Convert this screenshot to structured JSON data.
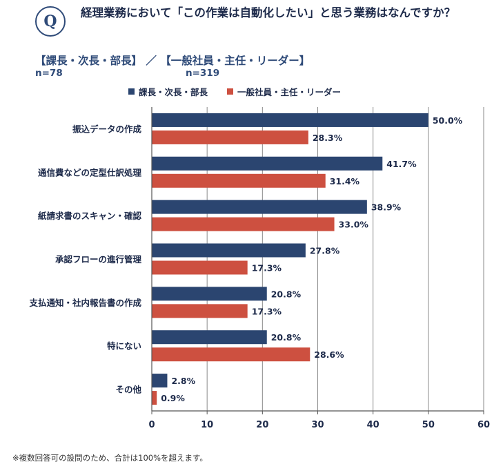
{
  "header": {
    "q_letter": "Q",
    "question": "経理業務において「この作業は自動化したい」と思う業務はなんですか？",
    "groups_line": "【課長・次長・部長】 ／ 【一般社員・主任・リーダー】",
    "n_manager": "n=78",
    "n_staff": "n=319"
  },
  "colors": {
    "manager": "#2b4570",
    "staff": "#cd5040"
  },
  "footnote": "※複数回答可の設問のため、合計は100%を超えます。",
  "chart_data": {
    "type": "bar",
    "orientation": "horizontal",
    "categories": [
      "振込データの作成",
      "通信費などの定型仕訳処理",
      "紙請求書のスキャン・確認",
      "承認フローの進行管理",
      "支払通知・社内報告書の作成",
      "特にない",
      "その他"
    ],
    "series": [
      {
        "name": "課長・次長・部長",
        "values": [
          50.0,
          41.7,
          38.9,
          27.8,
          20.8,
          20.8,
          2.8
        ],
        "labels": [
          "50.0%",
          "41.7%",
          "38.9%",
          "27.8%",
          "20.8%",
          "20.8%",
          "2.8%"
        ]
      },
      {
        "name": "一般社員・主任・リーダー",
        "values": [
          28.3,
          31.4,
          33.0,
          17.3,
          17.3,
          28.6,
          0.9
        ],
        "labels": [
          "28.3%",
          "31.4%",
          "33.0%",
          "17.3%",
          "17.3%",
          "28.6%",
          "0.9%"
        ]
      }
    ],
    "xlim": [
      0,
      60
    ],
    "xticks": [
      0,
      10,
      20,
      30,
      40,
      50,
      60
    ],
    "tick_labels": [
      "0",
      "10",
      "20",
      "30",
      "40",
      "50",
      "60"
    ],
    "grid": true,
    "legend": "top"
  }
}
